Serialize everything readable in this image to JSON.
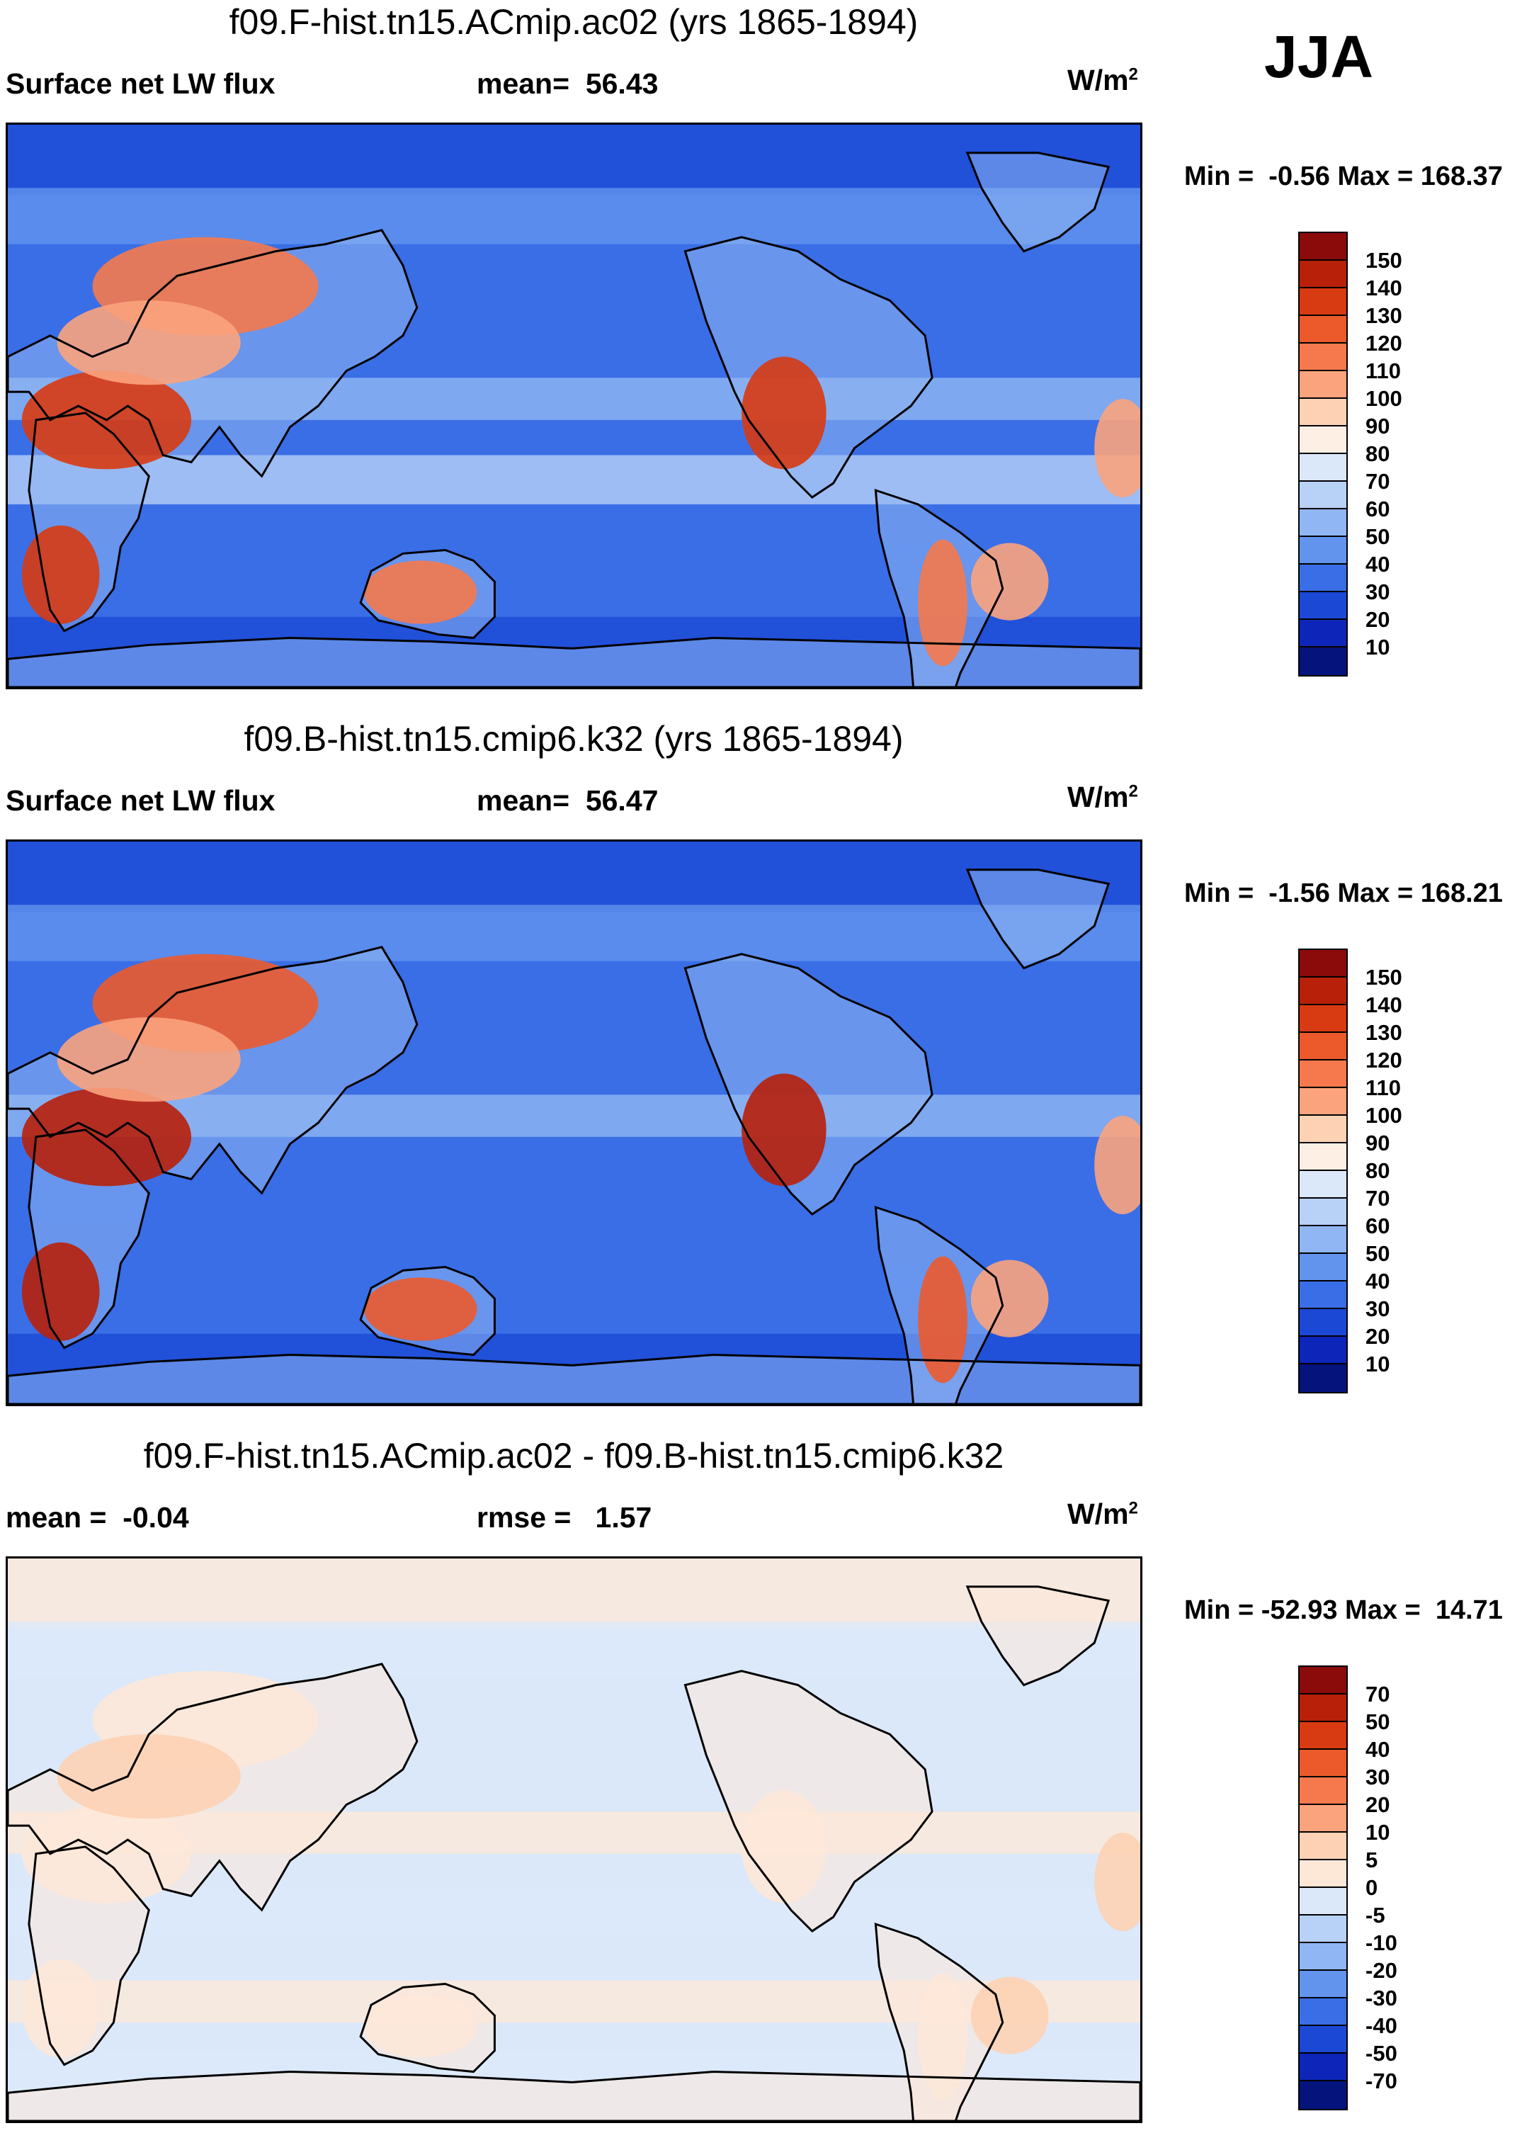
{
  "season": "JJA",
  "panels": [
    {
      "title": "f09.F-hist.tn15.ACmip.ac02 (yrs 1865-1894)",
      "left_label": "Surface net LW flux",
      "center_label": "mean=  56.43",
      "units": "W/m",
      "units_sup": "2",
      "minmax": "Min =  -0.56 Max = 168.37",
      "colorbar": {
        "labels": [
          "150",
          "140",
          "130",
          "120",
          "110",
          "100",
          "90",
          "80",
          "70",
          "60",
          "50",
          "40",
          "30",
          "20",
          "10"
        ],
        "colors": [
          "#8b0a0a",
          "#b8200a",
          "#d83a12",
          "#ec5a2c",
          "#f5794d",
          "#fba37d",
          "#fdd2b4",
          "#fdefe4",
          "#dbe8fa",
          "#b8d1f7",
          "#90b7f3",
          "#6294ee",
          "#3a6ee6",
          "#1c48d6",
          "#0d25b8",
          "#04147c"
        ]
      },
      "map": {
        "ocean_base": "#3a6ee6",
        "bands": [
          "#1c48d6",
          "#6294ee",
          "#90b7f3",
          "#b8d1f7",
          "#3a6ee6",
          "#1c48d6"
        ],
        "hot_colors": [
          "#d83a12",
          "#f5794d",
          "#fba37d"
        ]
      }
    },
    {
      "title": "f09.B-hist.tn15.cmip6.k32 (yrs 1865-1894)",
      "left_label": "Surface net LW flux",
      "center_label": "mean=  56.47",
      "units": "W/m",
      "units_sup": "2",
      "minmax": "Min =  -1.56 Max = 168.21",
      "colorbar": {
        "labels": [
          "150",
          "140",
          "130",
          "120",
          "110",
          "100",
          "90",
          "80",
          "70",
          "60",
          "50",
          "40",
          "30",
          "20",
          "10"
        ],
        "colors": [
          "#8b0a0a",
          "#b8200a",
          "#d83a12",
          "#ec5a2c",
          "#f5794d",
          "#fba37d",
          "#fdd2b4",
          "#fdefe4",
          "#dbe8fa",
          "#b8d1f7",
          "#90b7f3",
          "#6294ee",
          "#3a6ee6",
          "#1c48d6",
          "#0d25b8",
          "#04147c"
        ]
      },
      "map": {
        "ocean_base": "#3a6ee6",
        "bands": [
          "#1c48d6",
          "#6294ee",
          "#90b7f3",
          "#3a6ee6",
          "#3a6ee6",
          "#1c48d6"
        ],
        "hot_colors": [
          "#b8200a",
          "#ec5a2c",
          "#fba37d"
        ]
      }
    },
    {
      "title": "f09.F-hist.tn15.ACmip.ac02 - f09.B-hist.tn15.cmip6.k32",
      "left_label": "mean =  -0.04",
      "center_label": "rmse =   1.57",
      "units": "W/m",
      "units_sup": "2",
      "minmax": "Min = -52.93 Max =  14.71",
      "colorbar": {
        "labels": [
          "70",
          "50",
          "40",
          "30",
          "20",
          "10",
          "5",
          "0",
          "-5",
          "-10",
          "-20",
          "-30",
          "-40",
          "-50",
          "-70"
        ],
        "colors": [
          "#8b0a0a",
          "#b8200a",
          "#d83a12",
          "#ec5a2c",
          "#f5794d",
          "#fba37d",
          "#fdd2b4",
          "#fde8d8",
          "#dbe8fa",
          "#b8d1f7",
          "#90b7f3",
          "#6294ee",
          "#3a6ee6",
          "#1c48d6",
          "#0d25b8",
          "#04147c"
        ]
      },
      "map": {
        "ocean_base": "#dbe8fa",
        "bands": [
          "#fde8d8",
          "#dbe8fa",
          "#fde8d8",
          "#dbe8fa",
          "#fde8d8",
          "#dbe8fa"
        ],
        "hot_colors": [
          "#fde8d8",
          "#fde8d8",
          "#fdd2b4"
        ]
      }
    }
  ]
}
